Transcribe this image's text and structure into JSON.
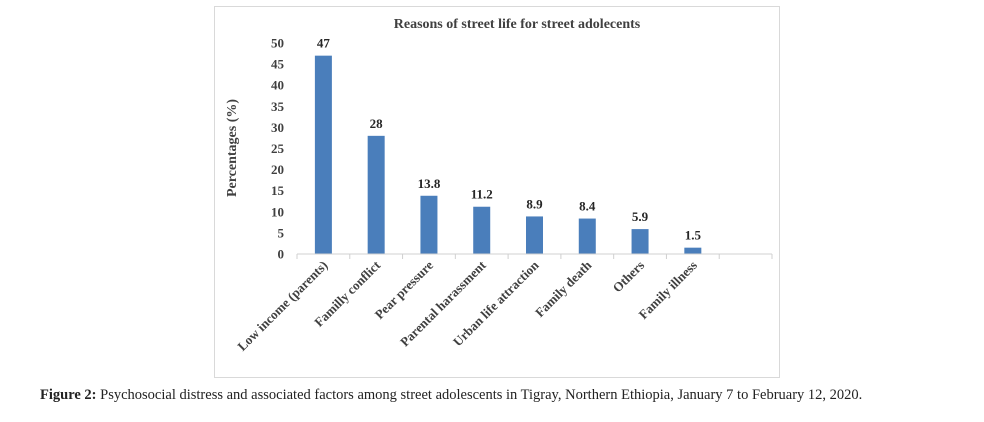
{
  "chart_data": {
    "type": "bar",
    "title": "Reasons of street life for street adolecents",
    "ylabel": "Percentages (%)",
    "xlabel": "",
    "ylim": [
      0,
      50
    ],
    "yticks": [
      0,
      5,
      10,
      15,
      20,
      25,
      30,
      35,
      40,
      45,
      50
    ],
    "categories": [
      "Low income (parents)",
      "Familly conflict",
      "Pear pressure",
      "Parental harassment",
      "Urban life attraction",
      "Family death",
      "Others",
      "Family illness"
    ],
    "values": [
      47,
      28,
      13.8,
      11.2,
      8.9,
      8.4,
      5.9,
      1.5
    ],
    "data_labels": [
      "47",
      "28",
      "13.8",
      "11.2",
      "8.9",
      "8.4",
      "5.9",
      "1.5"
    ],
    "bar_color": "#4a7ebb",
    "grid": false,
    "legend": "none"
  },
  "caption": {
    "label": "Figure 2:",
    "text": "Psychosocial distress and associated factors among street adolescents in Tigray, Northern Ethiopia, January 7 to February 12, 2020."
  }
}
